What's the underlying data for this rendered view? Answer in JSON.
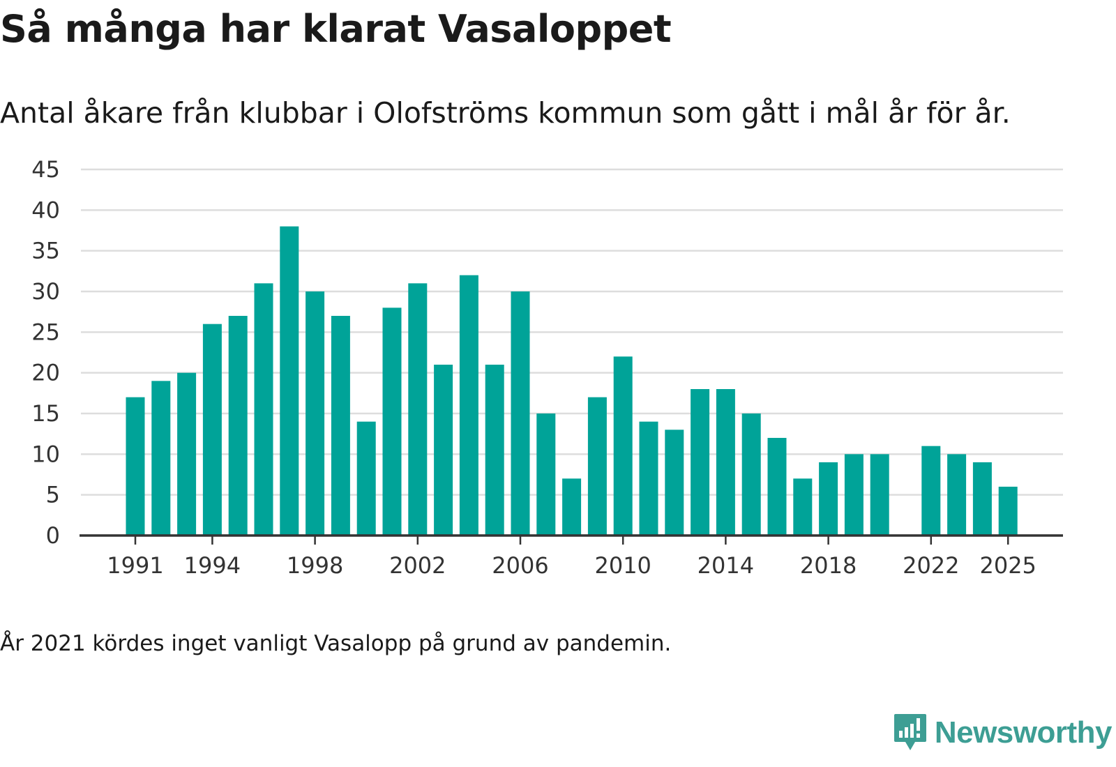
{
  "header": {
    "title": "Så många har klarat Vasaloppet",
    "subtitle": "Antal åkare från klubbar i Olofströms kommun som gått i mål år för år."
  },
  "footnote": "År 2021 kördes inget vanligt Vasalopp på grund av pandemin.",
  "brand": {
    "name": "Newsworthy",
    "icon": "newsworthy-logo-icon",
    "color": "#3d9e94"
  },
  "colors": {
    "bar": "#00a398",
    "grid": "#dddddd",
    "axis": "#333333"
  },
  "chart_data": {
    "type": "bar",
    "title": "Så många har klarat Vasaloppet",
    "subtitle": "Antal åkare från klubbar i Olofströms kommun som gått i mål år för år.",
    "xlabel": "",
    "ylabel": "",
    "ylim": [
      0,
      45
    ],
    "yticks": [
      0,
      5,
      10,
      15,
      20,
      25,
      30,
      35,
      40,
      45
    ],
    "xticks": [
      1991,
      1994,
      1998,
      2002,
      2006,
      2010,
      2014,
      2018,
      2022,
      2025
    ],
    "grid": true,
    "categories": [
      1991,
      1992,
      1993,
      1994,
      1995,
      1996,
      1997,
      1998,
      1999,
      2000,
      2001,
      2002,
      2003,
      2004,
      2005,
      2006,
      2007,
      2008,
      2009,
      2010,
      2011,
      2012,
      2013,
      2014,
      2015,
      2016,
      2017,
      2018,
      2019,
      2020,
      2021,
      2022,
      2023,
      2024,
      2025
    ],
    "values": [
      17,
      19,
      20,
      26,
      27,
      31,
      38,
      30,
      27,
      14,
      28,
      31,
      21,
      32,
      21,
      30,
      15,
      7,
      17,
      22,
      14,
      13,
      18,
      18,
      15,
      12,
      7,
      9,
      10,
      10,
      null,
      11,
      10,
      9,
      6
    ]
  }
}
